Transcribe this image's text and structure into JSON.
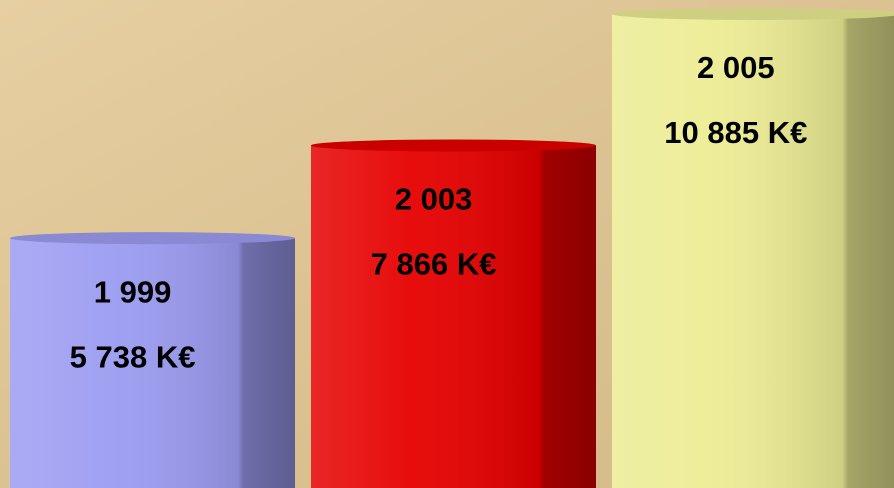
{
  "chart_data": {
    "type": "bar",
    "categories": [
      "1 999",
      "2 003",
      "2 005"
    ],
    "values": [
      5738,
      7866,
      10885
    ],
    "value_labels": [
      "5 738 K€",
      "7 866 K€",
      "10 885 K€"
    ],
    "colors": [
      "#9c9cf2",
      "#e60000",
      "#ecec94"
    ]
  }
}
